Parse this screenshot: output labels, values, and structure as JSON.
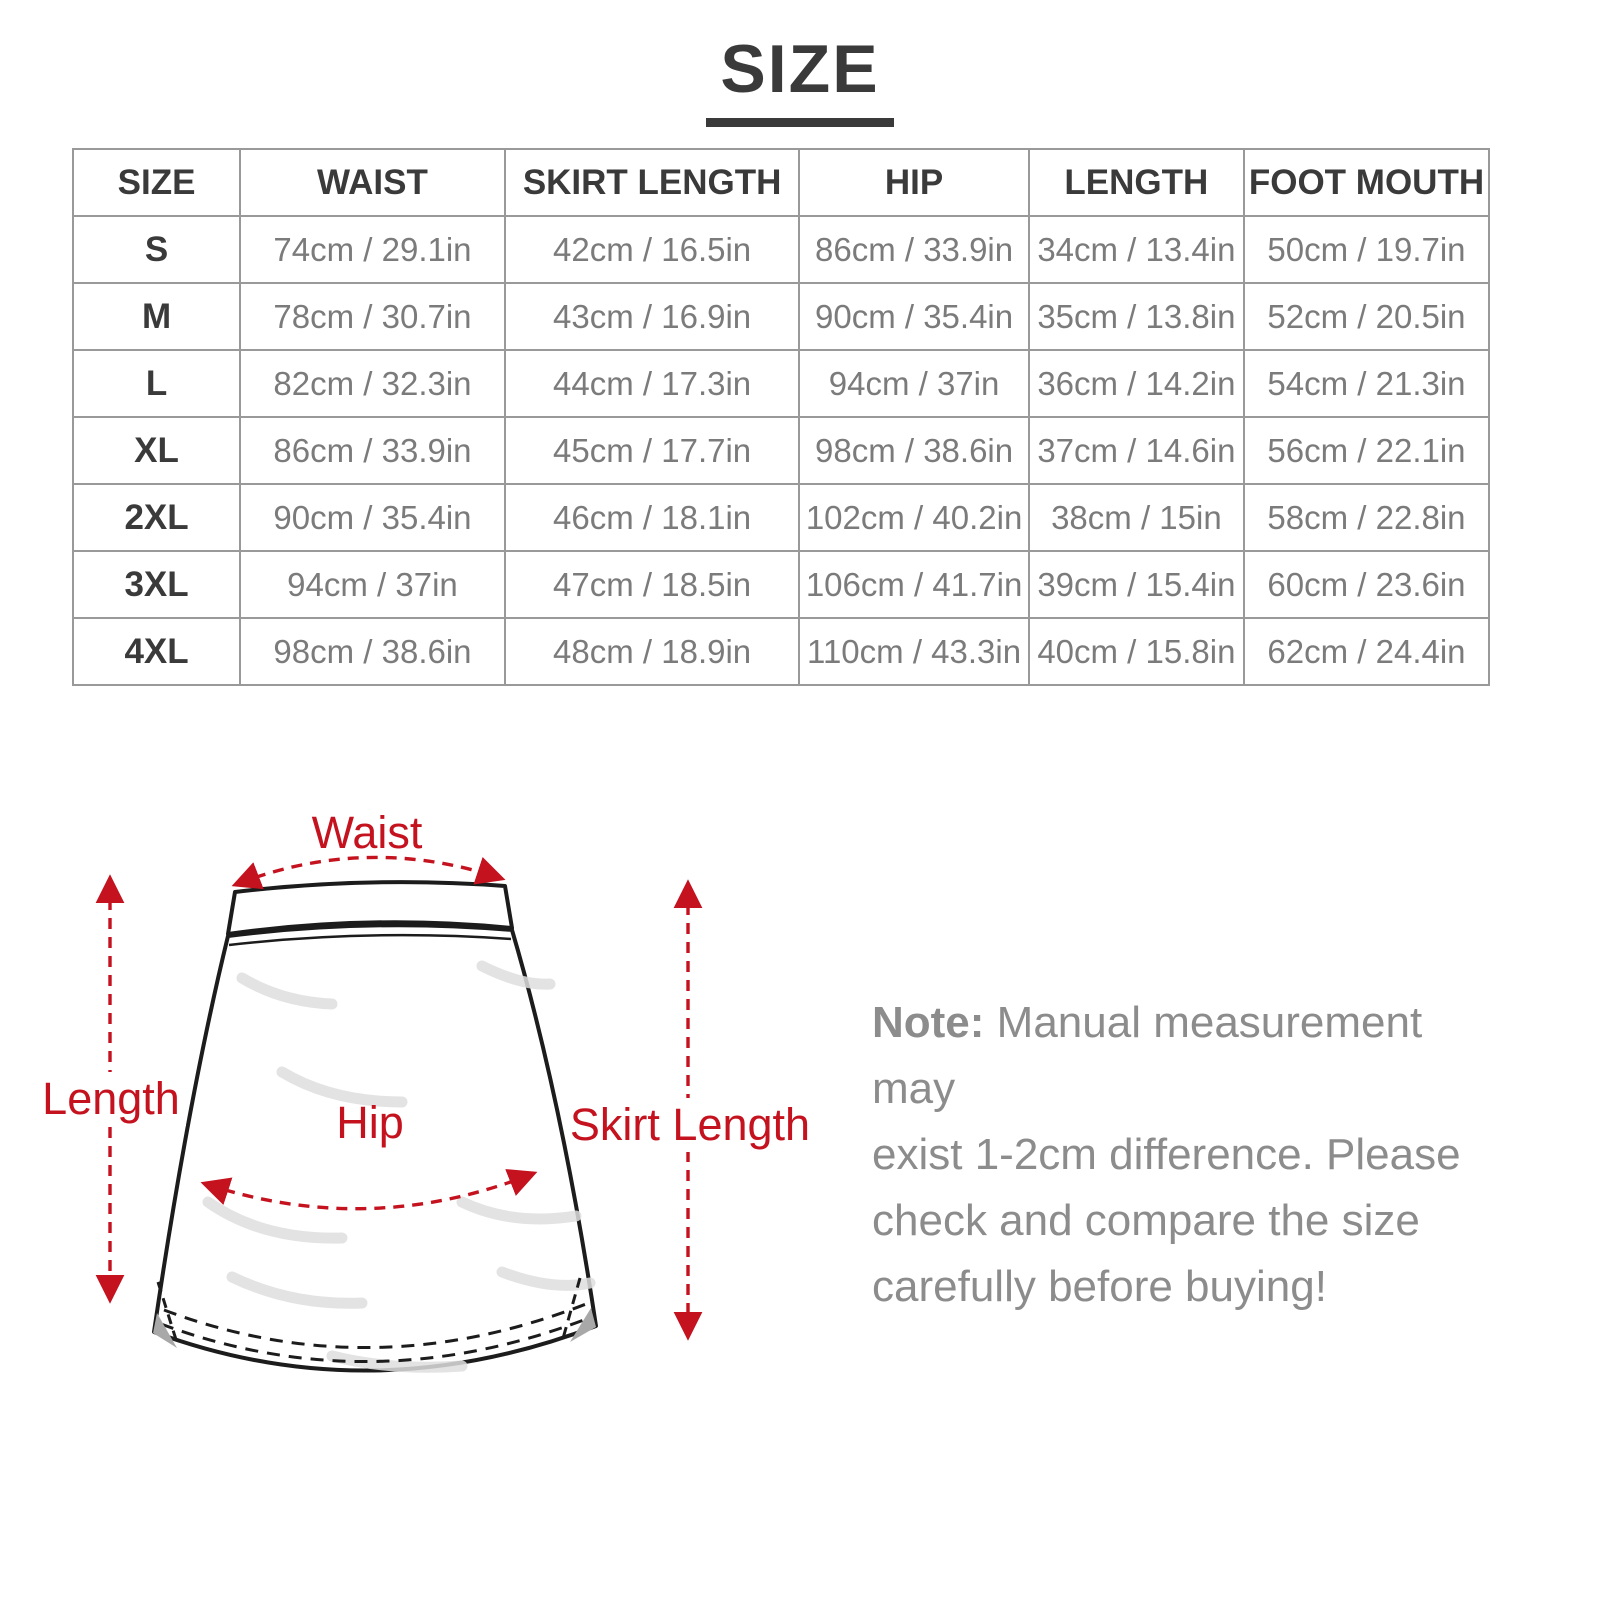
{
  "title": "SIZE",
  "colors": {
    "accent": "#c5121f",
    "heading": "#3a3a3a",
    "value_text": "#7b7b7b",
    "table_border": "#999999",
    "note_text": "#8c8c8c"
  },
  "size_table": {
    "columns": [
      "SIZE",
      "WAIST",
      "SKIRT LENGTH",
      "HIP",
      "LENGTH",
      "FOOT MOUTH"
    ],
    "rows": [
      [
        "S",
        "74cm / 29.1in",
        "42cm / 16.5in",
        "86cm / 33.9in",
        "34cm / 13.4in",
        "50cm / 19.7in"
      ],
      [
        "M",
        "78cm / 30.7in",
        "43cm / 16.9in",
        "90cm / 35.4in",
        "35cm / 13.8in",
        "52cm / 20.5in"
      ],
      [
        "L",
        "82cm / 32.3in",
        "44cm / 17.3in",
        "94cm / 37in",
        "36cm / 14.2in",
        "54cm / 21.3in"
      ],
      [
        "XL",
        "86cm / 33.9in",
        "45cm / 17.7in",
        "98cm / 38.6in",
        "37cm / 14.6in",
        "56cm / 22.1in"
      ],
      [
        "2XL",
        "90cm / 35.4in",
        "46cm / 18.1in",
        "102cm / 40.2in",
        "38cm / 15in",
        "58cm / 22.8in"
      ],
      [
        "3XL",
        "94cm / 37in",
        "47cm / 18.5in",
        "106cm / 41.7in",
        "39cm / 15.4in",
        "60cm / 23.6in"
      ],
      [
        "4XL",
        "98cm / 38.6in",
        "48cm / 18.9in",
        "110cm / 43.3in",
        "40cm / 15.8in",
        "62cm / 24.4in"
      ]
    ]
  },
  "diagram": {
    "labels": {
      "waist": "Waist",
      "hip": "Hip",
      "length": "Length",
      "skirt_length": "Skirt Length"
    }
  },
  "note": {
    "prefix": "Note:",
    "lines": [
      "Manual measurement may",
      "exist 1-2cm difference. Please",
      "check and compare the size",
      "carefully before buying!"
    ]
  }
}
